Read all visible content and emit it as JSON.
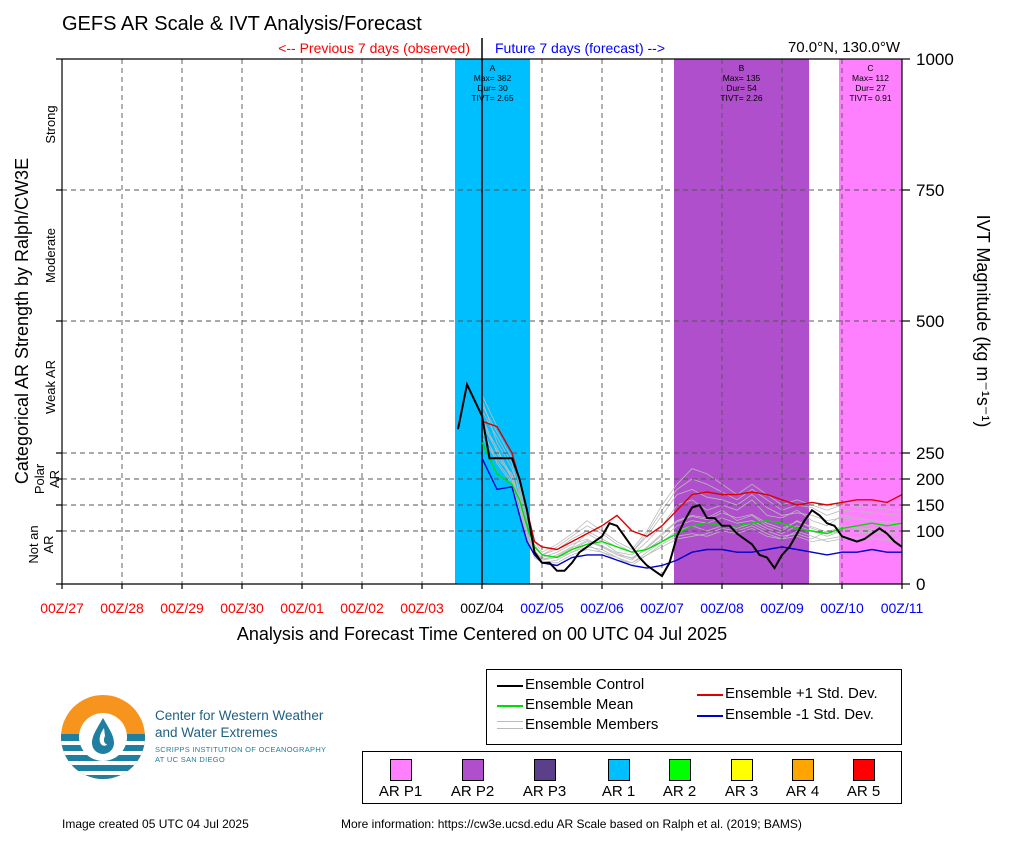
{
  "chart_data": {
    "type": "line",
    "title": "GEFS AR Scale & IVT Analysis/Forecast",
    "location": "70.0°N, 130.0°W",
    "previous_label": "<-- Previous 7 days (observed)",
    "future_label": "Future 7 days (forecast) -->",
    "xlabel": "Analysis and Forecast Time Centered on 00 UTC 04 Jul 2025",
    "ylabel_left": "Categorical AR Strength by Ralph/CW3E",
    "ylabel_right": "IVT Magnitude (kg m⁻¹s⁻¹)",
    "x_ticks": [
      "00Z/27",
      "00Z/28",
      "00Z/29",
      "00Z/30",
      "00Z/01",
      "00Z/02",
      "00Z/03",
      "00Z/04",
      "00Z/05",
      "00Z/06",
      "00Z/07",
      "00Z/08",
      "00Z/09",
      "00Z/10",
      "00Z/11"
    ],
    "x_tick_colors": [
      "#ff0000",
      "#ff0000",
      "#ff0000",
      "#ff0000",
      "#ff0000",
      "#ff0000",
      "#ff0000",
      "#000000",
      "#0000ff",
      "#0000ff",
      "#0000ff",
      "#0000ff",
      "#0000ff",
      "#0000ff",
      "#0000ff"
    ],
    "xlim": [
      -7,
      7
    ],
    "ylim": [
      0,
      1000
    ],
    "y_ticks": [
      0,
      100,
      150,
      200,
      250,
      500,
      750,
      1000
    ],
    "y_tick_labels": [
      "0",
      "100",
      "150",
      "200",
      "250",
      "500",
      "750",
      "1000"
    ],
    "categories_left": [
      {
        "label": "Strong",
        "range": [
          750,
          1000
        ]
      },
      {
        "label": "Moderate",
        "range": [
          500,
          750
        ]
      },
      {
        "label": "Weak AR",
        "range": [
          250,
          500
        ]
      },
      {
        "label": "Polar AR",
        "range": [
          150,
          250
        ]
      },
      {
        "label": "Not an AR",
        "range": [
          0,
          150
        ]
      }
    ],
    "grid": true,
    "events": [
      {
        "label": "A",
        "max": "Max= 382",
        "dur": "Dur= 30",
        "tivt": "TIVT= 2.65",
        "x_start": -0.45,
        "x_end": 0.8,
        "color": "#00bfff"
      },
      {
        "label": "B",
        "max": "Max= 135",
        "dur": "Dur= 54",
        "tivt": "TIVT= 2.26",
        "x_start": 3.2,
        "x_end": 5.45,
        "color": "#b04fcc"
      },
      {
        "label": "C",
        "max": "Max= 112",
        "dur": "Dur= 27",
        "tivt": "TIVT= 0.91",
        "x_start": 5.95,
        "x_end": 7.0,
        "color": "#ff80ff"
      }
    ],
    "series": [
      {
        "name": "Ensemble Control",
        "color": "#000000",
        "x": [
          -0.4,
          -0.25,
          0.0,
          0.125,
          0.25,
          0.375,
          0.5,
          0.625,
          0.75,
          0.875,
          1.0,
          1.125,
          1.25,
          1.375,
          1.5,
          1.625,
          1.75,
          1.875,
          2.0,
          2.125,
          2.25,
          2.375,
          2.5,
          2.625,
          2.75,
          2.875,
          3.0,
          3.125,
          3.25,
          3.375,
          3.5,
          3.625,
          3.75,
          3.875,
          4.0,
          4.125,
          4.25,
          4.375,
          4.5,
          4.625,
          4.75,
          4.875,
          5.0,
          5.125,
          5.25,
          5.375,
          5.5,
          5.625,
          5.75,
          5.875,
          6.0,
          6.125,
          6.25,
          6.375,
          6.5,
          6.625,
          6.75,
          6.875,
          7.0
        ],
        "y": [
          295,
          380,
          320,
          240,
          240,
          240,
          240,
          200,
          140,
          60,
          40,
          40,
          25,
          25,
          40,
          60,
          70,
          80,
          90,
          115,
          110,
          90,
          70,
          50,
          35,
          25,
          15,
          40,
          90,
          120,
          145,
          150,
          125,
          125,
          110,
          110,
          95,
          85,
          75,
          55,
          50,
          30,
          55,
          70,
          95,
          120,
          140,
          130,
          115,
          110,
          90,
          85,
          80,
          85,
          95,
          105,
          95,
          80,
          70
        ]
      },
      {
        "name": "Ensemble Mean",
        "color": "#00dd00",
        "x": [
          0.0,
          0.25,
          0.5,
          0.625,
          0.75,
          0.875,
          1.0,
          1.25,
          1.5,
          1.75,
          2.0,
          2.25,
          2.5,
          2.75,
          3.0,
          3.25,
          3.5,
          3.75,
          4.0,
          4.25,
          4.5,
          4.75,
          5.0,
          5.25,
          5.5,
          5.75,
          6.0,
          6.25,
          6.5,
          6.75,
          7.0
        ],
        "y": [
          270,
          210,
          190,
          160,
          110,
          70,
          55,
          50,
          65,
          75,
          80,
          70,
          60,
          65,
          80,
          95,
          110,
          115,
          110,
          110,
          115,
          120,
          115,
          105,
          100,
          95,
          105,
          110,
          115,
          110,
          115
        ]
      },
      {
        "name": "Ensemble +1 Std. Dev.",
        "color": "#dd0000",
        "x": [
          0.0,
          0.25,
          0.5,
          0.625,
          0.75,
          0.875,
          1.0,
          1.25,
          1.5,
          1.75,
          2.0,
          2.25,
          2.5,
          2.75,
          3.0,
          3.25,
          3.5,
          3.75,
          4.0,
          4.25,
          4.5,
          4.75,
          5.0,
          5.25,
          5.5,
          5.75,
          6.0,
          6.25,
          6.5,
          6.75,
          7.0
        ],
        "y": [
          310,
          300,
          250,
          200,
          140,
          80,
          70,
          65,
          80,
          95,
          110,
          130,
          100,
          90,
          110,
          140,
          170,
          175,
          170,
          170,
          175,
          170,
          160,
          150,
          155,
          150,
          155,
          160,
          160,
          155,
          170
        ]
      },
      {
        "name": "Ensemble -1 Std. Dev.",
        "color": "#0000cc",
        "x": [
          0.0,
          0.25,
          0.5,
          0.625,
          0.75,
          0.875,
          1.0,
          1.25,
          1.5,
          1.75,
          2.0,
          2.25,
          2.5,
          2.75,
          3.0,
          3.25,
          3.5,
          3.75,
          4.0,
          4.25,
          4.5,
          4.75,
          5.0,
          5.25,
          5.5,
          5.75,
          6.0,
          6.25,
          6.5,
          6.75,
          7.0
        ],
        "y": [
          240,
          180,
          185,
          130,
          80,
          55,
          40,
          35,
          50,
          55,
          55,
          45,
          35,
          30,
          35,
          45,
          60,
          65,
          65,
          60,
          60,
          65,
          70,
          65,
          60,
          55,
          60,
          60,
          65,
          60,
          60
        ]
      }
    ],
    "members_legend": "Ensemble Members",
    "members_color": "#bbbbbb",
    "members": [
      [
        310,
        260,
        200,
        150,
        80,
        60,
        50,
        60,
        75,
        85,
        70,
        55,
        45,
        70,
        95,
        120,
        130,
        125,
        140,
        120,
        130,
        110,
        100,
        120,
        105,
        95,
        110,
        90
      ],
      [
        330,
        280,
        230,
        170,
        100,
        65,
        45,
        55,
        70,
        95,
        80,
        60,
        55,
        80,
        110,
        150,
        160,
        140,
        150,
        140,
        160,
        130,
        125,
        140,
        120,
        110,
        130,
        110
      ],
      [
        290,
        240,
        210,
        160,
        90,
        50,
        40,
        45,
        60,
        70,
        65,
        50,
        40,
        60,
        80,
        100,
        110,
        100,
        110,
        105,
        115,
        100,
        90,
        95,
        85,
        100,
        95,
        100
      ],
      [
        350,
        270,
        220,
        180,
        110,
        70,
        55,
        70,
        90,
        110,
        95,
        75,
        60,
        90,
        130,
        170,
        180,
        165,
        160,
        150,
        170,
        145,
        130,
        135,
        130,
        120,
        125,
        115
      ],
      [
        320,
        250,
        200,
        165,
        95,
        60,
        45,
        50,
        65,
        80,
        70,
        55,
        50,
        65,
        85,
        110,
        120,
        115,
        125,
        115,
        120,
        105,
        95,
        110,
        100,
        90,
        100,
        95
      ],
      [
        300,
        230,
        190,
        140,
        85,
        55,
        40,
        40,
        55,
        65,
        60,
        50,
        35,
        55,
        75,
        90,
        95,
        90,
        100,
        95,
        105,
        90,
        85,
        90,
        80,
        85,
        90,
        80
      ],
      [
        340,
        290,
        240,
        190,
        120,
        75,
        55,
        65,
        85,
        100,
        85,
        70,
        60,
        95,
        140,
        180,
        200,
        190,
        175,
        160,
        180,
        160,
        140,
        150,
        145,
        130,
        140,
        130
      ],
      [
        280,
        235,
        195,
        155,
        90,
        55,
        45,
        50,
        60,
        75,
        60,
        45,
        40,
        55,
        70,
        85,
        90,
        95,
        105,
        100,
        110,
        95,
        85,
        100,
        90,
        80,
        85,
        85
      ],
      [
        360,
        300,
        250,
        200,
        130,
        80,
        60,
        75,
        95,
        120,
        100,
        80,
        65,
        100,
        150,
        190,
        220,
        210,
        190,
        170,
        190,
        170,
        150,
        160,
        150,
        140,
        150,
        140
      ],
      [
        305,
        255,
        205,
        160,
        95,
        60,
        48,
        52,
        68,
        82,
        72,
        58,
        48,
        68,
        92,
        118,
        128,
        122,
        135,
        125,
        132,
        115,
        105,
        118,
        108,
        98,
        108,
        100
      ]
    ],
    "members_x": [
      0.0,
      0.25,
      0.5,
      0.625,
      0.75,
      0.875,
      1.0,
      1.25,
      1.5,
      1.75,
      2.0,
      2.25,
      2.5,
      2.75,
      3.0,
      3.25,
      3.5,
      3.75,
      4.0,
      4.25,
      4.5,
      4.75,
      5.0,
      5.25,
      5.5,
      5.75,
      6.0,
      7.0
    ]
  },
  "legend": {
    "items": [
      {
        "label": "Ensemble Control",
        "color": "#000000"
      },
      {
        "label": "Ensemble Mean",
        "color": "#00dd00"
      },
      {
        "label": "Ensemble Members",
        "color": "#bbbbbb"
      },
      {
        "label": "Ensemble +1 Std. Dev.",
        "color": "#dd0000"
      },
      {
        "label": "Ensemble -1 Std. Dev.",
        "color": "#0000cc"
      }
    ]
  },
  "ar_scale": [
    {
      "label": "AR P1",
      "color": "#ff80ff"
    },
    {
      "label": "AR P2",
      "color": "#b04fcc"
    },
    {
      "label": "AR P3",
      "color": "#5a3f8a"
    },
    {
      "label": "AR 1",
      "color": "#00bfff"
    },
    {
      "label": "AR 2",
      "color": "#00ff00"
    },
    {
      "label": "AR 3",
      "color": "#ffff00"
    },
    {
      "label": "AR 4",
      "color": "#ffa500"
    },
    {
      "label": "AR 5",
      "color": "#ff0000"
    }
  ],
  "logo": {
    "name_line1": "Center for Western Weather",
    "name_line2": "and Water Extremes",
    "sub_line1": "SCRIPPS INSTITUTION OF OCEANOGRAPHY",
    "sub_line2": "AT UC SAN DIEGO"
  },
  "footer": {
    "created": "Image created 05 UTC 04 Jul 2025",
    "info": "More information: https://cw3e.ucsd.edu AR Scale based on Ralph et al. (2019; BAMS)"
  }
}
